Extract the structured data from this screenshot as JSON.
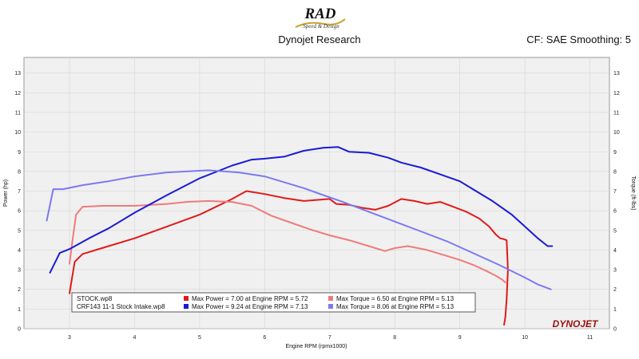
{
  "header": {
    "logo_text": "RAD",
    "logo_sub": "Speed & Design",
    "title": "Dynojet Research",
    "correction": "CF: SAE Smoothing: 5"
  },
  "brand": {
    "name": "DYNOJET",
    "text_color": "#9a1010"
  },
  "colors": {
    "stock_power": "#e01a1a",
    "stock_torque": "#f07a7a",
    "crf_power": "#1a1ad6",
    "crf_torque": "#7a7af0",
    "plot_background": "#f0f0f0",
    "grid": "#d6d6d6"
  },
  "legend": {
    "rows": [
      {
        "file": "STOCK.wp8",
        "power": "Max Power = 7.00 at Engine RPM = 5.72",
        "torque": "Max Torque = 6.50 at Engine RPM = 5.13"
      },
      {
        "file": "CRF143 11-1 Stock Intake.wp8",
        "power": "Max Power = 9.24 at Engine RPM = 7.13",
        "torque": "Max Torque = 8.06 at Engine RPM = 5.13"
      }
    ]
  },
  "chart_data": {
    "type": "line",
    "xlabel": "Engine RPM (rpmx1000)",
    "ylabel": "Power (hp)",
    "y2label": "Torque (ft-lbs)",
    "xlim": [
      2.3,
      11.3
    ],
    "ylim": [
      0,
      13.8
    ],
    "y2lim": [
      0,
      13.8
    ],
    "x_ticks": [
      3,
      4,
      5,
      6,
      7,
      8,
      9,
      10,
      11
    ],
    "y_ticks": [
      0,
      1,
      2,
      3,
      4,
      5,
      6,
      7,
      8,
      9,
      10,
      11,
      12,
      13
    ],
    "y2_ticks": [
      0,
      1,
      2,
      3,
      4,
      5,
      6,
      7,
      8,
      9,
      10,
      11,
      12,
      13
    ],
    "grid": true,
    "legend_position": "bottom-left",
    "series": [
      {
        "key": "stock_power",
        "axis": "left",
        "x": [
          3.0,
          3.08,
          3.2,
          3.5,
          4.0,
          4.5,
          5.0,
          5.5,
          5.72,
          6.0,
          6.3,
          6.6,
          6.8,
          7.0,
          7.1,
          7.3,
          7.5,
          7.7,
          7.9,
          8.1,
          8.3,
          8.5,
          8.7,
          8.9,
          9.1,
          9.3,
          9.45,
          9.55,
          9.62,
          9.68,
          9.72,
          9.74,
          9.72,
          9.7,
          9.68
        ],
        "y": [
          1.8,
          3.4,
          3.8,
          4.1,
          4.6,
          5.2,
          5.8,
          6.6,
          7.0,
          6.85,
          6.65,
          6.5,
          6.55,
          6.6,
          6.35,
          6.3,
          6.15,
          6.05,
          6.25,
          6.6,
          6.5,
          6.35,
          6.45,
          6.2,
          5.95,
          5.6,
          5.2,
          4.8,
          4.6,
          4.55,
          4.5,
          3.0,
          1.5,
          0.6,
          0.2
        ]
      },
      {
        "key": "stock_torque",
        "axis": "right",
        "x": [
          3.0,
          3.05,
          3.1,
          3.2,
          3.5,
          4.0,
          4.5,
          4.8,
          5.13,
          5.5,
          5.8,
          6.1,
          6.4,
          6.7,
          7.0,
          7.3,
          7.6,
          7.85,
          8.0,
          8.2,
          8.5,
          8.8,
          9.0,
          9.2,
          9.4,
          9.55,
          9.65,
          9.7
        ],
        "y": [
          3.3,
          4.6,
          5.8,
          6.2,
          6.25,
          6.25,
          6.35,
          6.45,
          6.5,
          6.45,
          6.25,
          5.75,
          5.4,
          5.05,
          4.75,
          4.5,
          4.2,
          3.95,
          4.1,
          4.2,
          4.0,
          3.7,
          3.5,
          3.25,
          2.95,
          2.7,
          2.5,
          2.35
        ]
      },
      {
        "key": "crf_power",
        "axis": "left",
        "x": [
          2.7,
          2.85,
          3.0,
          3.3,
          3.6,
          4.0,
          4.5,
          5.0,
          5.5,
          5.8,
          6.0,
          6.3,
          6.6,
          6.9,
          7.13,
          7.3,
          7.6,
          7.9,
          8.1,
          8.4,
          8.7,
          9.0,
          9.2,
          9.5,
          9.8,
          10.0,
          10.2,
          10.35,
          10.42
        ],
        "y": [
          2.85,
          3.85,
          4.05,
          4.6,
          5.1,
          5.9,
          6.8,
          7.65,
          8.3,
          8.6,
          8.65,
          8.75,
          9.05,
          9.2,
          9.24,
          9.0,
          8.95,
          8.7,
          8.45,
          8.2,
          7.85,
          7.5,
          7.1,
          6.5,
          5.8,
          5.2,
          4.6,
          4.2,
          4.2
        ]
      },
      {
        "key": "crf_torque",
        "axis": "right",
        "x": [
          2.65,
          2.75,
          2.9,
          3.2,
          3.6,
          4.0,
          4.5,
          5.13,
          5.6,
          6.0,
          6.3,
          6.6,
          6.9,
          7.2,
          7.6,
          8.0,
          8.4,
          8.8,
          9.2,
          9.6,
          10.0,
          10.2,
          10.4
        ],
        "y": [
          5.5,
          7.1,
          7.1,
          7.3,
          7.5,
          7.75,
          7.95,
          8.06,
          7.95,
          7.75,
          7.45,
          7.15,
          6.8,
          6.45,
          5.95,
          5.45,
          4.95,
          4.45,
          3.85,
          3.25,
          2.6,
          2.25,
          2.0
        ]
      }
    ]
  }
}
